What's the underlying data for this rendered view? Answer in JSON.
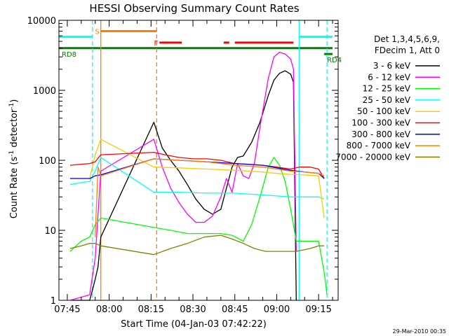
{
  "chart_data": {
    "type": "line",
    "title": "HESSI Observing Summary Count Rates",
    "xlabel": "Start Time (04-Jan-03 07:42:22)",
    "ylabel_main": "Count Rate (s",
    "ylabel_sup1": "-1",
    "ylabel_mid": " detector",
    "ylabel_sup2": "-1",
    "ylabel_end": ")",
    "y_scale": "log",
    "ylim": [
      1,
      10000
    ],
    "xlim": [
      "07:42",
      "09:22"
    ],
    "x_ticks": [
      "07:45",
      "08:00",
      "08:15",
      "08:30",
      "08:45",
      "09:00",
      "09:15"
    ],
    "y_ticks": [
      {
        "v": 1,
        "label": "1"
      },
      {
        "v": 10,
        "label": "10"
      },
      {
        "v": 100,
        "label": "100"
      },
      {
        "v": 1000,
        "label": "1000"
      },
      {
        "v": 10000,
        "label": "10000"
      }
    ],
    "legend_header": [
      "Det 1,3,4,5,6,9,",
      "FDecim 1, Att 0"
    ],
    "legend_placement": "right",
    "timestamp": "29-Mar-2010 00:35",
    "series": [
      {
        "name": "3 - 6 keV",
        "color": "#000000",
        "points": [
          [
            "07:47",
            1.0
          ],
          [
            "07:53",
            1.0
          ],
          [
            "07:54",
            1.4
          ],
          [
            "07:55",
            2.0
          ],
          [
            "07:56",
            3.0
          ],
          [
            "07:57",
            8.0
          ],
          [
            "08:16",
            350
          ],
          [
            "08:19",
            150
          ],
          [
            "08:22",
            100
          ],
          [
            "08:25",
            70
          ],
          [
            "08:28",
            45
          ],
          [
            "08:31",
            28
          ],
          [
            "08:34",
            20
          ],
          [
            "08:37",
            17
          ],
          [
            "08:40",
            20
          ],
          [
            "08:42",
            40
          ],
          [
            "08:44",
            80
          ],
          [
            "08:46",
            110
          ],
          [
            "08:48",
            115
          ],
          [
            "08:51",
            180
          ],
          [
            "08:54",
            350
          ],
          [
            "08:57",
            850
          ],
          [
            "08:59",
            1400
          ],
          [
            "09:01",
            1750
          ],
          [
            "09:03",
            1900
          ],
          [
            "09:05",
            1700
          ],
          [
            "09:06",
            1300
          ],
          [
            "09:07",
            1.0
          ]
        ]
      },
      {
        "name": "6 - 12 keV",
        "color": "#ff00ff",
        "points": [
          [
            "07:46",
            1.0
          ],
          [
            "07:53",
            1.2
          ],
          [
            "07:55",
            4.0
          ],
          [
            "07:57",
            70
          ],
          [
            "08:16",
            200
          ],
          [
            "08:19",
            80
          ],
          [
            "08:22",
            40
          ],
          [
            "08:25",
            25
          ],
          [
            "08:28",
            17
          ],
          [
            "08:31",
            13
          ],
          [
            "08:34",
            13
          ],
          [
            "08:37",
            16
          ],
          [
            "08:40",
            30
          ],
          [
            "08:42",
            55
          ],
          [
            "08:44",
            35
          ],
          [
            "08:46",
            90
          ],
          [
            "08:48",
            60
          ],
          [
            "08:50",
            55
          ],
          [
            "08:52",
            90
          ],
          [
            "08:54",
            300
          ],
          [
            "08:57",
            1500
          ],
          [
            "08:59",
            3000
          ],
          [
            "09:01",
            3500
          ],
          [
            "09:03",
            3300
          ],
          [
            "09:05",
            2800
          ],
          [
            "09:06",
            2000
          ],
          [
            "09:07",
            5.0
          ]
        ]
      },
      {
        "name": "12 - 25 keV",
        "color": "#00ff00",
        "points": [
          [
            "07:46",
            5.0
          ],
          [
            "07:50",
            7.0
          ],
          [
            "07:53",
            8.0
          ],
          [
            "07:55",
            12
          ],
          [
            "07:57",
            15
          ],
          [
            "08:16",
            11
          ],
          [
            "08:22",
            10
          ],
          [
            "08:28",
            9
          ],
          [
            "08:34",
            9
          ],
          [
            "08:40",
            9
          ],
          [
            "08:44",
            8.5
          ],
          [
            "08:48",
            7
          ],
          [
            "08:51",
            12
          ],
          [
            "08:54",
            30
          ],
          [
            "08:57",
            80
          ],
          [
            "08:59",
            110
          ],
          [
            "09:01",
            85
          ],
          [
            "09:03",
            50
          ],
          [
            "09:05",
            20
          ],
          [
            "09:07",
            7
          ],
          [
            "09:12",
            7
          ],
          [
            "09:15",
            7
          ],
          [
            "09:17",
            2.5
          ],
          [
            "09:18",
            1.2
          ]
        ]
      },
      {
        "name": "25 - 50 keV",
        "color": "#00ffff",
        "points": [
          [
            "07:46",
            45
          ],
          [
            "07:50",
            48
          ],
          [
            "07:53",
            50
          ],
          [
            "07:55",
            70
          ],
          [
            "07:57",
            110
          ],
          [
            "08:16",
            35
          ],
          [
            "08:25",
            35
          ],
          [
            "08:35",
            34
          ],
          [
            "08:45",
            34
          ],
          [
            "08:55",
            32
          ],
          [
            "09:00",
            31
          ],
          [
            "09:05",
            30
          ],
          [
            "09:07",
            30
          ],
          [
            "09:10",
            30
          ],
          [
            "09:15",
            30
          ],
          [
            "09:17",
            28
          ]
        ]
      },
      {
        "name": "50 - 100 keV",
        "color": "#ffc800",
        "points": [
          [
            "07:46",
            55
          ],
          [
            "07:50",
            55
          ],
          [
            "07:53",
            55
          ],
          [
            "07:55",
            120
          ],
          [
            "07:57",
            200
          ],
          [
            "08:16",
            80
          ],
          [
            "08:25",
            78
          ],
          [
            "08:35",
            75
          ],
          [
            "08:45",
            72
          ],
          [
            "08:55",
            68
          ],
          [
            "09:00",
            65
          ],
          [
            "09:05",
            63
          ],
          [
            "09:10",
            62
          ],
          [
            "09:15",
            60
          ],
          [
            "09:17",
            15
          ]
        ]
      },
      {
        "name": "100 - 300 keV",
        "color": "#ff0000",
        "points": [
          [
            "07:46",
            85
          ],
          [
            "07:50",
            88
          ],
          [
            "07:53",
            90
          ],
          [
            "07:55",
            95
          ],
          [
            "07:57",
            120
          ],
          [
            "08:16",
            130
          ],
          [
            "08:20",
            120
          ],
          [
            "08:25",
            110
          ],
          [
            "08:30",
            105
          ],
          [
            "08:35",
            105
          ],
          [
            "08:40",
            100
          ],
          [
            "08:45",
            90
          ],
          [
            "08:50",
            88
          ],
          [
            "08:55",
            85
          ],
          [
            "09:00",
            80
          ],
          [
            "09:05",
            75
          ],
          [
            "09:08",
            80
          ],
          [
            "09:12",
            80
          ],
          [
            "09:15",
            75
          ],
          [
            "09:17",
            55
          ]
        ]
      },
      {
        "name": "300 - 800 keV",
        "color": "#0000ff",
        "points": [
          [
            "07:46",
            55
          ],
          [
            "07:50",
            55
          ],
          [
            "07:53",
            55
          ],
          [
            "07:55",
            60
          ],
          [
            "07:57",
            62
          ],
          [
            "08:16",
            105
          ],
          [
            "08:25",
            100
          ],
          [
            "08:35",
            95
          ],
          [
            "08:45",
            90
          ],
          [
            "08:55",
            85
          ],
          [
            "09:00",
            78
          ],
          [
            "09:05",
            72
          ],
          [
            "09:10",
            68
          ],
          [
            "09:15",
            65
          ],
          [
            "09:17",
            55
          ]
        ]
      },
      {
        "name": "800 - 7000 keV",
        "color": "#ff8000",
        "points": [
          [
            "07:55",
            8
          ],
          [
            "07:56",
            80
          ],
          [
            "07:57",
            60
          ],
          [
            "08:16",
            105
          ],
          [
            "08:25",
            100
          ],
          [
            "08:35",
            95
          ],
          [
            "08:45",
            85
          ],
          [
            "08:55",
            80
          ],
          [
            "09:00",
            75
          ],
          [
            "09:05",
            70
          ],
          [
            "09:10",
            68
          ],
          [
            "09:15",
            65
          ],
          [
            "09:17",
            60
          ]
        ]
      },
      {
        "name": "7000 - 20000 keV",
        "color": "#808000",
        "points": [
          [
            "07:46",
            5.5
          ],
          [
            "07:50",
            6
          ],
          [
            "07:53",
            6.5
          ],
          [
            "07:55",
            6.5
          ],
          [
            "07:57",
            6
          ],
          [
            "08:16",
            4.5
          ],
          [
            "08:22",
            5.5
          ],
          [
            "08:28",
            6.5
          ],
          [
            "08:34",
            8
          ],
          [
            "08:40",
            8.5
          ],
          [
            "08:44",
            7.5
          ],
          [
            "08:48",
            6.5
          ],
          [
            "08:52",
            5.5
          ],
          [
            "08:56",
            5
          ],
          [
            "09:00",
            5
          ],
          [
            "09:04",
            5
          ],
          [
            "09:07",
            5
          ],
          [
            "09:12",
            5.5
          ],
          [
            "09:15",
            6
          ],
          [
            "09:17",
            6
          ]
        ]
      }
    ],
    "flag_bars": [
      {
        "label": "",
        "color": "#00ffff",
        "start": "07:42",
        "end": "07:54",
        "level": 5800
      },
      {
        "label": "",
        "color": "#00ffff",
        "start": "09:08",
        "end": "09:20",
        "level": 5800
      },
      {
        "label": "S",
        "color": "#ff8000",
        "start": "07:57",
        "end": "08:17",
        "level": 7000
      },
      {
        "label": "F",
        "color": "#ff0000",
        "start": "08:18",
        "end": "08:26",
        "level": 4800
      },
      {
        "label": "",
        "color": "#ff0000",
        "start": "08:41",
        "end": "08:43",
        "level": 4800
      },
      {
        "label": "",
        "color": "#ff0000",
        "start": "08:45",
        "end": "09:06",
        "level": 4800
      },
      {
        "label": "RD8",
        "color": "#008000",
        "start": "07:42",
        "end": "09:20",
        "level": 4000
      },
      {
        "label": "RD4",
        "color": "#008000",
        "start": "09:17",
        "end": "09:20",
        "level": 3300
      }
    ],
    "vertical_markers": [
      {
        "time": "07:54",
        "color": "#00ffff",
        "style": "dashed"
      },
      {
        "time": "09:08",
        "color": "#00ffff",
        "style": "solid"
      },
      {
        "time": "09:18",
        "color": "#00ffff",
        "style": "dashed"
      },
      {
        "time": "07:57",
        "color": "#ff8000",
        "style": "solid"
      },
      {
        "time": "08:17",
        "color": "#ff8000",
        "style": "dashed"
      }
    ]
  }
}
